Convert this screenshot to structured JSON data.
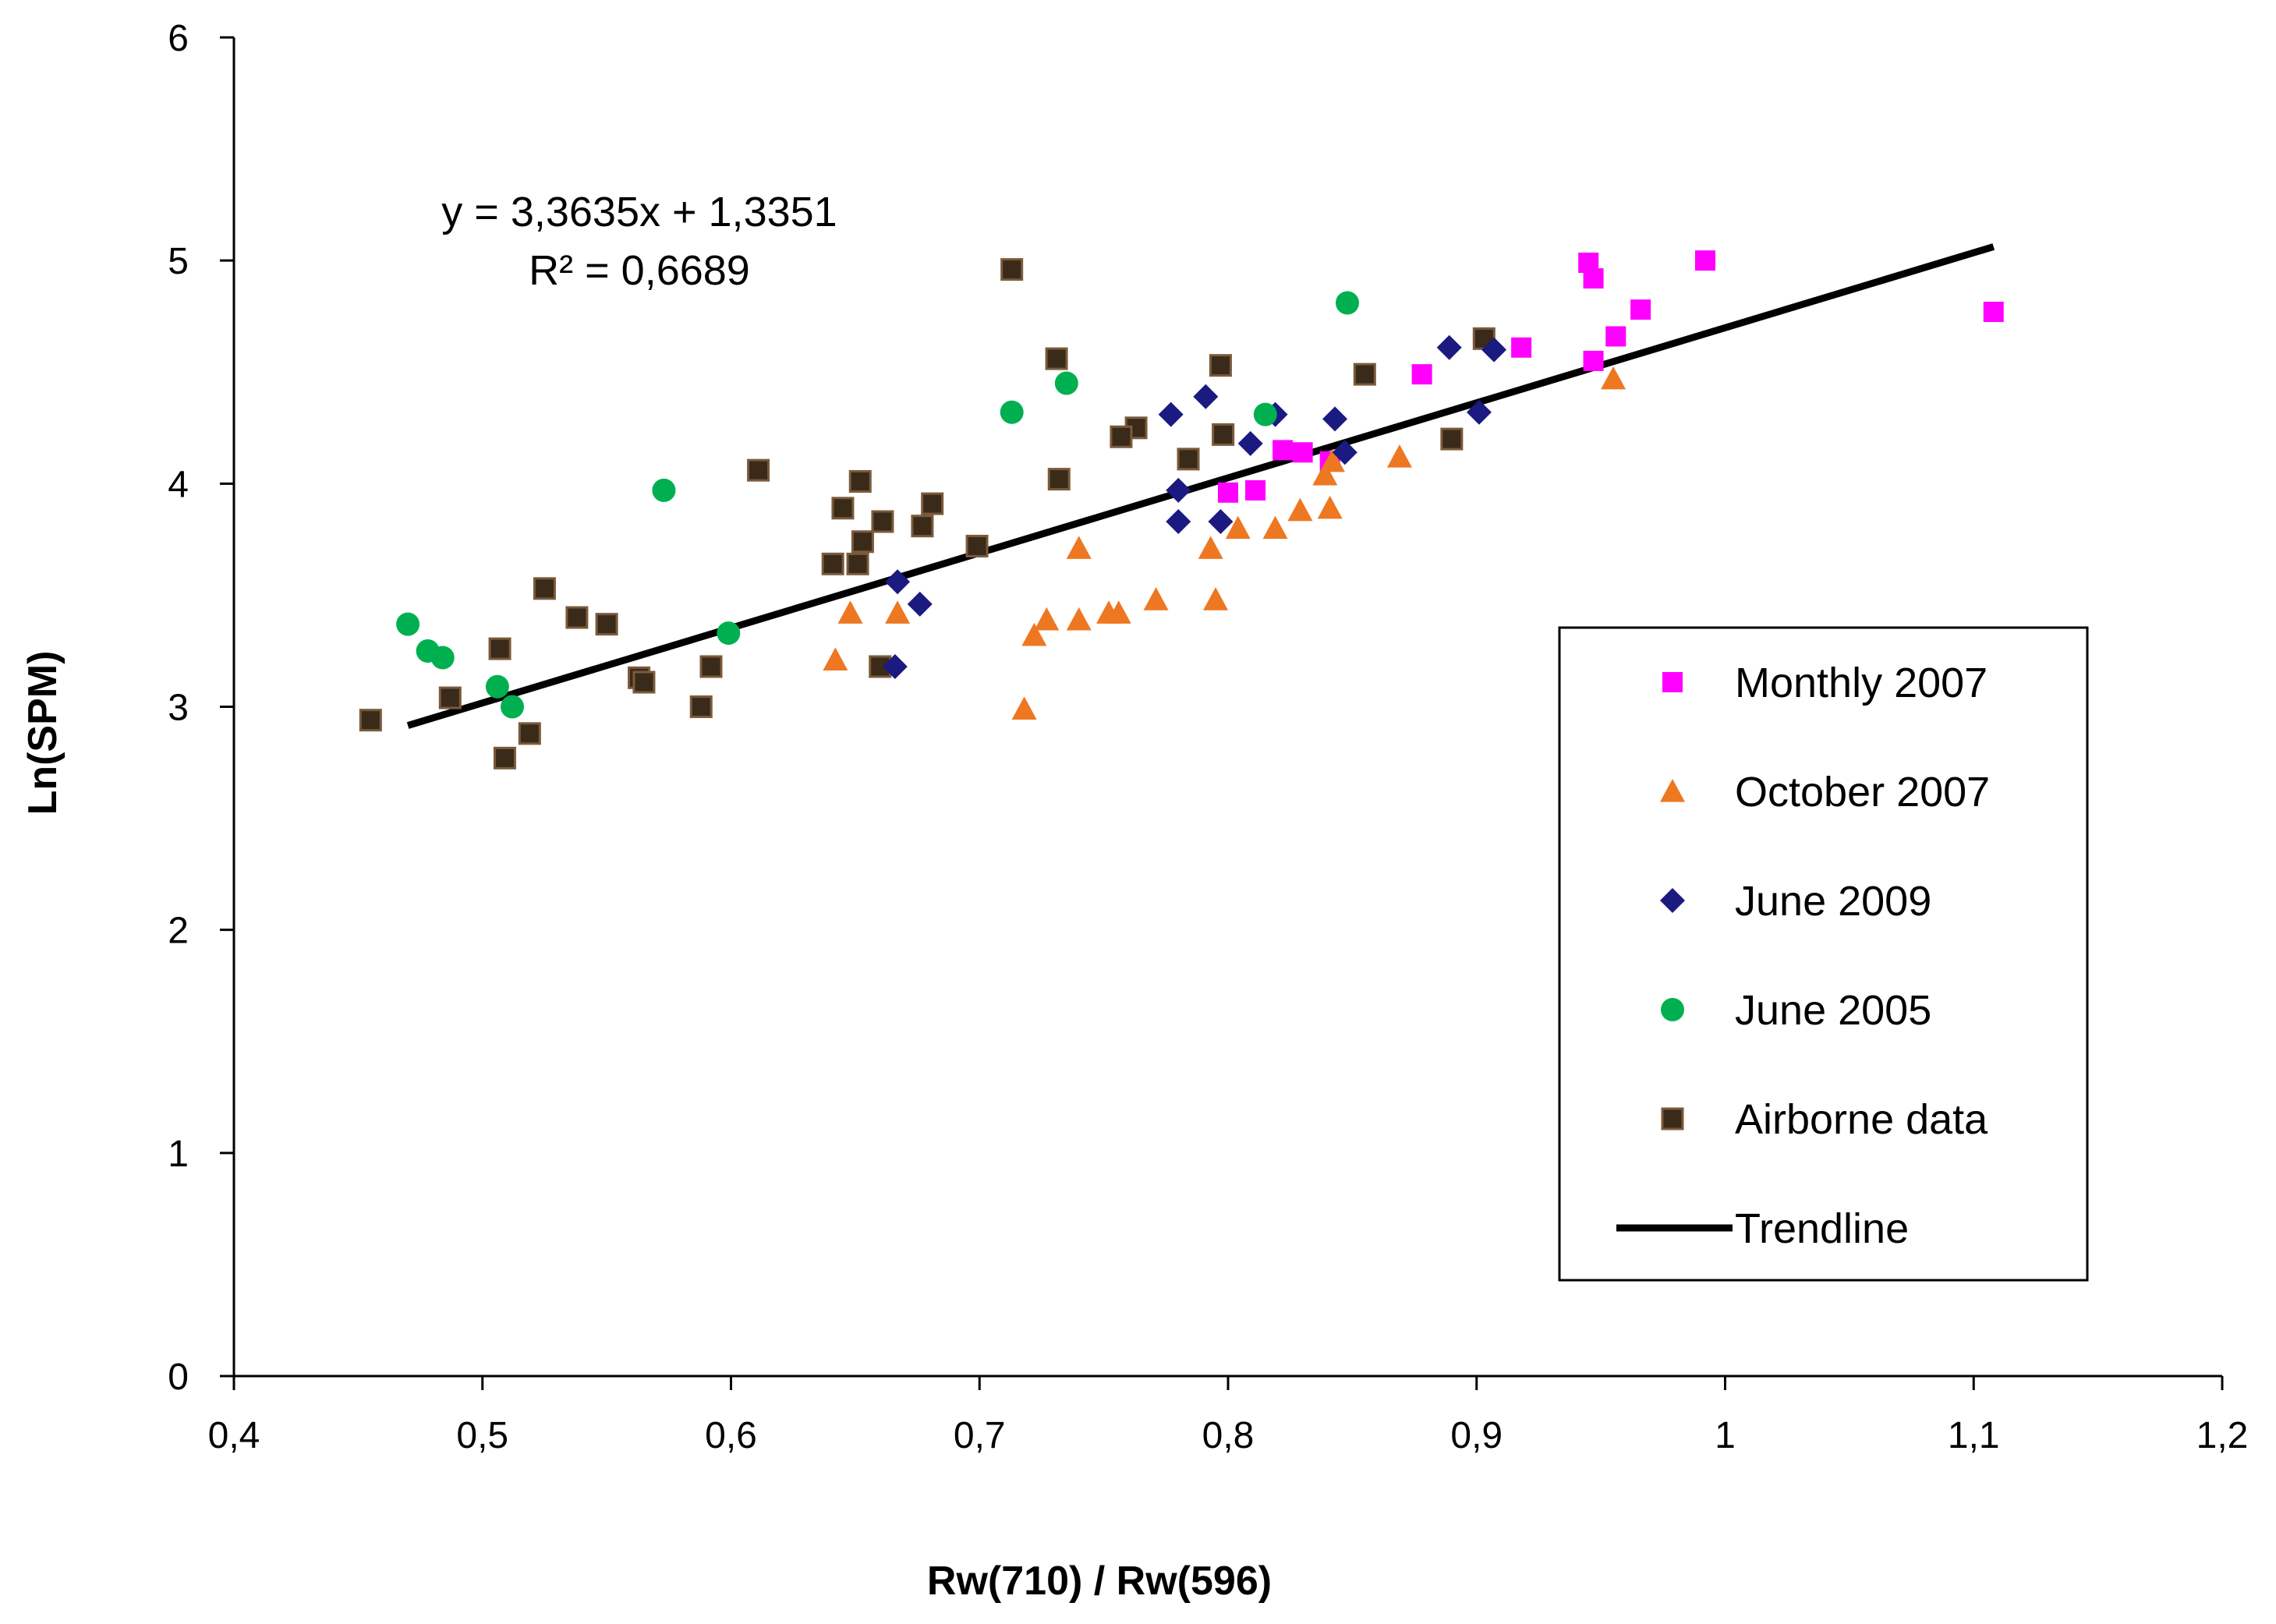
{
  "chart_data": {
    "type": "scatter",
    "title": "",
    "xlabel": "Rw(710) / Rw(596)",
    "ylabel": "Ln(SPM)",
    "xlim": [
      0.4,
      1.2
    ],
    "ylim": [
      0,
      6
    ],
    "xticks": [
      0.4,
      0.5,
      0.6,
      0.7,
      0.8,
      0.9,
      1.0,
      1.1,
      1.2
    ],
    "xtick_labels": [
      "0,4",
      "0,5",
      "0,6",
      "0,7",
      "0,8",
      "0,9",
      "1",
      "1,1",
      "1,2"
    ],
    "yticks": [
      0,
      1,
      2,
      3,
      4,
      5,
      6
    ],
    "ytick_labels": [
      "0",
      "1",
      "2",
      "3",
      "4",
      "5",
      "6"
    ],
    "grid": false,
    "legend_position": "right",
    "annotations": [
      "y = 3,3635x + 1,3351",
      "R² = 0,6689"
    ],
    "series": [
      {
        "name": "Monthly 2007",
        "marker": "square",
        "color": "#ff00ff",
        "points": [
          [
            0.945,
            4.99
          ],
          [
            0.947,
            4.92
          ],
          [
            0.992,
            5.0
          ],
          [
            0.966,
            4.78
          ],
          [
            0.956,
            4.66
          ],
          [
            0.947,
            4.55
          ],
          [
            0.918,
            4.61
          ],
          [
            0.878,
            4.49
          ],
          [
            0.822,
            4.15
          ],
          [
            0.83,
            4.14
          ],
          [
            0.841,
            4.1
          ],
          [
            0.8,
            3.96
          ],
          [
            0.811,
            3.97
          ],
          [
            1.108,
            4.77
          ]
        ]
      },
      {
        "name": "October 2007",
        "marker": "triangle",
        "color": "#ee7722",
        "points": [
          [
            0.955,
            4.47
          ],
          [
            0.869,
            4.12
          ],
          [
            0.842,
            4.1
          ],
          [
            0.839,
            4.04
          ],
          [
            0.841,
            3.89
          ],
          [
            0.829,
            3.88
          ],
          [
            0.819,
            3.8
          ],
          [
            0.804,
            3.8
          ],
          [
            0.793,
            3.71
          ],
          [
            0.795,
            3.48
          ],
          [
            0.771,
            3.48
          ],
          [
            0.756,
            3.42
          ],
          [
            0.752,
            3.42
          ],
          [
            0.74,
            3.71
          ],
          [
            0.74,
            3.39
          ],
          [
            0.727,
            3.39
          ],
          [
            0.722,
            3.32
          ],
          [
            0.718,
            2.99
          ],
          [
            0.667,
            3.42
          ],
          [
            0.648,
            3.42
          ],
          [
            0.642,
            3.21
          ]
        ]
      },
      {
        "name": "June 2009",
        "marker": "diamond",
        "color": "#1a1a80",
        "points": [
          [
            0.889,
            4.61
          ],
          [
            0.907,
            4.6
          ],
          [
            0.901,
            4.32
          ],
          [
            0.843,
            4.29
          ],
          [
            0.847,
            4.14
          ],
          [
            0.819,
            4.31
          ],
          [
            0.791,
            4.39
          ],
          [
            0.777,
            4.31
          ],
          [
            0.809,
            4.18
          ],
          [
            0.78,
            3.97
          ],
          [
            0.78,
            3.83
          ],
          [
            0.797,
            3.83
          ],
          [
            0.667,
            3.56
          ],
          [
            0.676,
            3.46
          ],
          [
            0.666,
            3.18
          ]
        ]
      },
      {
        "name": "June 2005",
        "marker": "circle",
        "color": "#00b050",
        "points": [
          [
            0.848,
            4.81
          ],
          [
            0.815,
            4.31
          ],
          [
            0.735,
            4.45
          ],
          [
            0.713,
            4.32
          ],
          [
            0.573,
            3.97
          ],
          [
            0.599,
            3.33
          ],
          [
            0.47,
            3.37
          ],
          [
            0.478,
            3.25
          ],
          [
            0.484,
            3.22
          ],
          [
            0.506,
            3.09
          ],
          [
            0.512,
            3.0
          ]
        ]
      },
      {
        "name": "Airborne data",
        "marker": "square",
        "color": "#3a2a1a",
        "points": [
          [
            0.713,
            4.96
          ],
          [
            0.731,
            4.56
          ],
          [
            0.797,
            4.53
          ],
          [
            0.855,
            4.49
          ],
          [
            0.903,
            4.65
          ],
          [
            0.89,
            4.2
          ],
          [
            0.763,
            4.25
          ],
          [
            0.757,
            4.21
          ],
          [
            0.798,
            4.22
          ],
          [
            0.784,
            4.11
          ],
          [
            0.732,
            4.02
          ],
          [
            0.611,
            4.06
          ],
          [
            0.652,
            4.01
          ],
          [
            0.645,
            3.89
          ],
          [
            0.661,
            3.83
          ],
          [
            0.677,
            3.81
          ],
          [
            0.681,
            3.91
          ],
          [
            0.653,
            3.74
          ],
          [
            0.641,
            3.64
          ],
          [
            0.651,
            3.64
          ],
          [
            0.699,
            3.72
          ],
          [
            0.525,
            3.53
          ],
          [
            0.538,
            3.4
          ],
          [
            0.55,
            3.37
          ],
          [
            0.507,
            3.26
          ],
          [
            0.592,
            3.18
          ],
          [
            0.66,
            3.18
          ],
          [
            0.563,
            3.13
          ],
          [
            0.565,
            3.11
          ],
          [
            0.487,
            3.04
          ],
          [
            0.588,
            3.0
          ],
          [
            0.455,
            2.94
          ],
          [
            0.519,
            2.88
          ],
          [
            0.509,
            2.77
          ]
        ]
      }
    ],
    "trendline": {
      "name": "Trendline",
      "color": "#000000",
      "slope": 3.3635,
      "intercept": 1.3351,
      "x_range": [
        0.47,
        1.108
      ]
    }
  }
}
